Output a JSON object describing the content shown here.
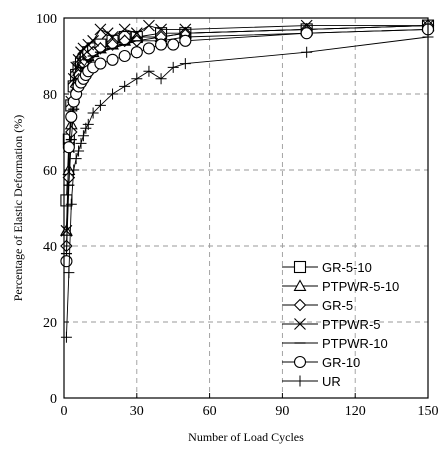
{
  "chart_data": {
    "type": "line",
    "title": "",
    "xlabel": "Number of Load Cycles",
    "ylabel": "Percentage of Elastic Deformation (%)",
    "xlim": [
      0,
      150
    ],
    "ylim": [
      0,
      100
    ],
    "xticks": [
      0,
      30,
      60,
      90,
      120,
      150
    ],
    "yticks": [
      0,
      20,
      40,
      60,
      80,
      100
    ],
    "grid": "dashed, both axes",
    "legend_position": "bottom-right",
    "series": [
      {
        "name": "GR-5-10",
        "marker": "square",
        "x": [
          1,
          2,
          3,
          4,
          5,
          6,
          7,
          8,
          9,
          10,
          12,
          15,
          20,
          25,
          30,
          40,
          50,
          100,
          150
        ],
        "y": [
          52,
          68,
          77,
          82,
          85,
          87,
          88,
          89,
          90,
          91,
          92,
          93,
          94,
          95,
          95,
          96,
          96,
          97,
          98
        ]
      },
      {
        "name": "PTPWR-5-10",
        "marker": "triangle",
        "x": [
          1,
          2,
          3,
          4,
          5,
          6,
          8,
          10,
          12,
          15,
          20,
          25,
          30,
          40,
          50,
          100,
          150
        ],
        "y": [
          44,
          60,
          72,
          79,
          83,
          86,
          88,
          90,
          91,
          92,
          93,
          94,
          95,
          95,
          96,
          97,
          98
        ]
      },
      {
        "name": "GR-5",
        "marker": "diamond",
        "x": [
          1,
          2,
          3,
          4,
          5,
          6,
          8,
          10,
          12,
          15,
          20,
          25,
          30,
          40,
          50,
          100,
          150
        ],
        "y": [
          40,
          58,
          70,
          78,
          82,
          85,
          88,
          90,
          91,
          92,
          93,
          94,
          94,
          95,
          96,
          97,
          98
        ]
      },
      {
        "name": "PTPWR-5",
        "marker": "x",
        "x": [
          1,
          2,
          3,
          4,
          5,
          6,
          7,
          8,
          10,
          12,
          15,
          18,
          20,
          25,
          30,
          35,
          40,
          50,
          100,
          150
        ],
        "y": [
          44,
          66,
          78,
          84,
          87,
          89,
          91,
          92,
          93,
          94,
          97,
          96,
          95,
          97,
          96,
          98,
          97,
          97,
          98,
          98
        ]
      },
      {
        "name": "PTPWR-10",
        "marker": "dash",
        "x": [
          1,
          2,
          3,
          4,
          5,
          6,
          8,
          10,
          12,
          15,
          20,
          25,
          30,
          40,
          50,
          100,
          150
        ],
        "y": [
          38,
          56,
          68,
          76,
          81,
          84,
          87,
          89,
          90,
          91,
          92,
          93,
          94,
          94,
          95,
          96,
          97
        ]
      },
      {
        "name": "GR-10",
        "marker": "circle",
        "x": [
          1,
          2,
          3,
          4,
          5,
          6,
          7,
          8,
          9,
          10,
          12,
          15,
          20,
          25,
          30,
          35,
          40,
          45,
          50,
          100,
          150
        ],
        "y": [
          36,
          66,
          74,
          78,
          80,
          82,
          83,
          84,
          85,
          86,
          87,
          88,
          89,
          90,
          91,
          92,
          93,
          93,
          94,
          96,
          97
        ]
      },
      {
        "name": "UR",
        "marker": "plus",
        "x": [
          1,
          2,
          3,
          4,
          5,
          6,
          7,
          8,
          9,
          10,
          12,
          15,
          20,
          25,
          30,
          35,
          40,
          45,
          50,
          100,
          150
        ],
        "y": [
          16,
          33,
          51,
          60,
          63,
          65,
          67,
          69,
          71,
          72,
          75,
          77,
          80,
          82,
          84,
          86,
          84,
          87,
          88,
          91,
          95
        ]
      }
    ]
  }
}
